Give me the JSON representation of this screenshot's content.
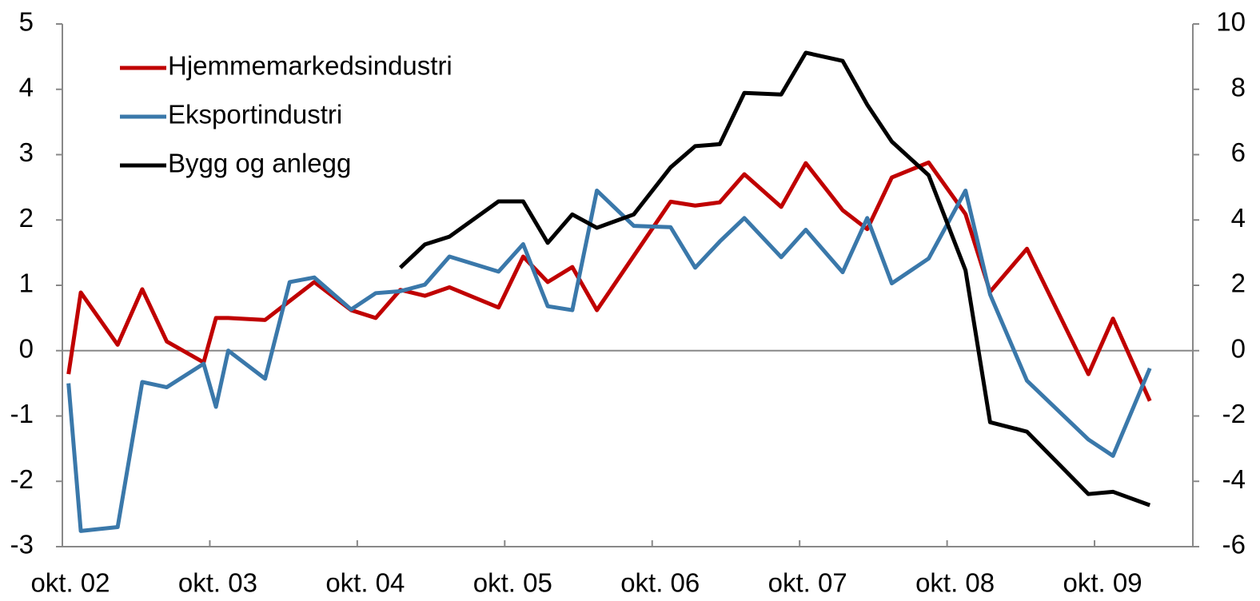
{
  "chart_data": {
    "type": "line",
    "xlim": [
      0,
      92
    ],
    "xticks": [
      {
        "value": 0,
        "label": "okt. 02"
      },
      {
        "value": 12,
        "label": "okt. 03"
      },
      {
        "value": 24,
        "label": "okt. 04"
      },
      {
        "value": 36,
        "label": "okt. 05"
      },
      {
        "value": 48,
        "label": "okt. 06"
      },
      {
        "value": 60,
        "label": "okt. 07"
      },
      {
        "value": 72,
        "label": "okt. 08"
      },
      {
        "value": 84,
        "label": "okt. 09"
      }
    ],
    "ylim": [
      -3,
      5
    ],
    "yticks": [
      -3,
      -2,
      -1,
      0,
      1,
      2,
      3,
      4,
      5
    ],
    "y2lim": [
      -6,
      10
    ],
    "y2ticks": [
      -6,
      -4,
      -2,
      0,
      2,
      4,
      6,
      8,
      10
    ],
    "legend": "upper-left",
    "series": [
      {
        "name": "Hjemmemarkedsindustri",
        "color": "#c00000",
        "x": [
          0.5,
          1.5,
          4.5,
          6.5,
          8.5,
          11.5,
          12.5,
          13.5,
          16.5,
          20.5,
          23.5,
          25.5,
          27.5,
          29.5,
          31.5,
          35.5,
          37.5,
          39.5,
          41.5,
          43.5,
          49.5,
          51.5,
          53.5,
          55.5,
          58.5,
          60.5,
          63.5,
          65.5,
          67.5,
          70.5,
          73.5,
          75.5,
          78.5,
          83.5,
          85.5,
          88.5
        ],
        "values": [
          -0.36,
          0.89,
          0.09,
          0.94,
          0.14,
          -0.18,
          0.5,
          0.5,
          0.47,
          1.05,
          0.62,
          0.5,
          0.93,
          0.84,
          0.97,
          0.66,
          1.44,
          1.05,
          1.28,
          0.62,
          2.28,
          2.22,
          2.27,
          2.7,
          2.2,
          2.87,
          2.15,
          1.86,
          2.65,
          2.88,
          2.09,
          0.9,
          1.56,
          -0.36,
          0.49,
          -0.77
        ]
      },
      {
        "name": "Eksportindustri",
        "color": "#3a78aa",
        "x": [
          0.5,
          1.5,
          4.5,
          6.5,
          8.5,
          11.5,
          12.5,
          13.5,
          16.5,
          18.5,
          20.5,
          23.5,
          25.5,
          27.5,
          29.5,
          31.5,
          35.5,
          37.5,
          39.5,
          41.5,
          43.5,
          46.5,
          49.5,
          51.5,
          53.5,
          55.5,
          58.5,
          60.5,
          63.5,
          65.5,
          67.5,
          70.5,
          73.5,
          75.5,
          78.5,
          83.5,
          85.5,
          88.5
        ],
        "values": [
          -0.5,
          -2.76,
          -2.7,
          -0.48,
          -0.56,
          -0.2,
          -0.86,
          0.0,
          -0.43,
          1.05,
          1.12,
          0.63,
          0.88,
          0.91,
          1.01,
          1.44,
          1.21,
          1.63,
          0.68,
          0.62,
          2.45,
          1.91,
          1.89,
          1.27,
          1.67,
          2.03,
          1.43,
          1.85,
          1.2,
          2.03,
          1.03,
          1.41,
          2.45,
          0.86,
          -0.46,
          -1.36,
          -1.61,
          -0.27
        ]
      },
      {
        "name": "Bygg og anlegg",
        "color": "#000000",
        "axis": "y2",
        "x": [
          27.5,
          29.5,
          31.5,
          35.5,
          37.5,
          39.5,
          41.5,
          43.5,
          46.5,
          49.5,
          51.5,
          53.5,
          55.5,
          58.5,
          60.5,
          63.5,
          65.5,
          67.5,
          70.5,
          73.5,
          75.5,
          78.5,
          83.5,
          85.5,
          88.5
        ],
        "values": [
          2.54,
          3.25,
          3.49,
          4.57,
          4.57,
          3.3,
          4.17,
          3.76,
          4.17,
          5.61,
          6.26,
          6.32,
          7.89,
          7.84,
          9.12,
          8.87,
          7.53,
          6.4,
          5.37,
          2.46,
          -2.19,
          -2.48,
          -4.39,
          -4.32,
          -4.73
        ]
      }
    ]
  }
}
